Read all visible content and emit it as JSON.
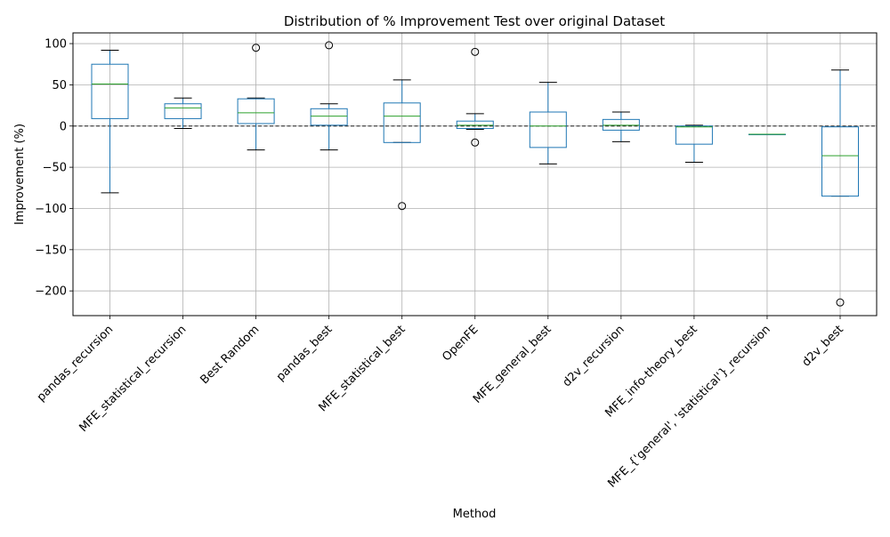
{
  "chart_data": {
    "type": "boxplot",
    "title": "Distribution of % Improvement Test over original Dataset",
    "xlabel": "Method",
    "ylabel": "Improvement (%)",
    "ylim": [
      -230,
      113
    ],
    "yticks": [
      100,
      50,
      0,
      -50,
      -100,
      -150,
      -200
    ],
    "ytick_labels": [
      "100",
      "50",
      "0",
      "−50",
      "−100",
      "−150",
      "−200"
    ],
    "grid": true,
    "reference_line": 0,
    "categories": [
      "pandas_recursion",
      "MFE_statistical_recursion",
      "Best Random",
      "pandas_best",
      "MFE_statistical_best",
      "OpenFE",
      "MFE_general_best",
      "d2v_recursion",
      "MFE_info-theory_best",
      "MFE_{'general', 'statistical'}_recursion",
      "d2v_best"
    ],
    "boxes": [
      {
        "whislo": -81,
        "q1": 9,
        "med": 51,
        "q3": 75,
        "whishi": 92,
        "fliers": []
      },
      {
        "whislo": -3,
        "q1": 9,
        "med": 22,
        "q3": 27,
        "whishi": 34,
        "fliers": []
      },
      {
        "whislo": -29,
        "q1": 3,
        "med": 16,
        "q3": 33,
        "whishi": 34,
        "fliers": [
          95
        ]
      },
      {
        "whislo": -29,
        "q1": 1,
        "med": 12,
        "q3": 21,
        "whishi": 27,
        "fliers": [
          98
        ]
      },
      {
        "whislo": -20,
        "q1": -20,
        "med": 12,
        "q3": 28,
        "whishi": 56,
        "fliers": [
          -97
        ]
      },
      {
        "whislo": -4,
        "q1": -3,
        "med": 1,
        "q3": 6,
        "whishi": 15,
        "fliers": [
          90,
          -20
        ]
      },
      {
        "whislo": -46,
        "q1": -26,
        "med": 0,
        "q3": 17,
        "whishi": 53,
        "fliers": []
      },
      {
        "whislo": -19,
        "q1": -5,
        "med": 1,
        "q3": 8,
        "whishi": 17,
        "fliers": []
      },
      {
        "whislo": -44,
        "q1": -22,
        "med": -1,
        "q3": 0,
        "whishi": 1,
        "fliers": []
      },
      {
        "whislo": -10,
        "q1": -10,
        "med": -10,
        "q3": -10,
        "whishi": -10,
        "fliers": []
      },
      {
        "whislo": -85,
        "q1": -85,
        "med": -36,
        "q3": -1,
        "whishi": 68,
        "fliers": [
          -214
        ]
      }
    ],
    "colors": {
      "box": "#1f77b4",
      "median": "#2ca02c",
      "grid": "#b0b0b0",
      "axis": "#000000",
      "reference": "#000000"
    }
  }
}
